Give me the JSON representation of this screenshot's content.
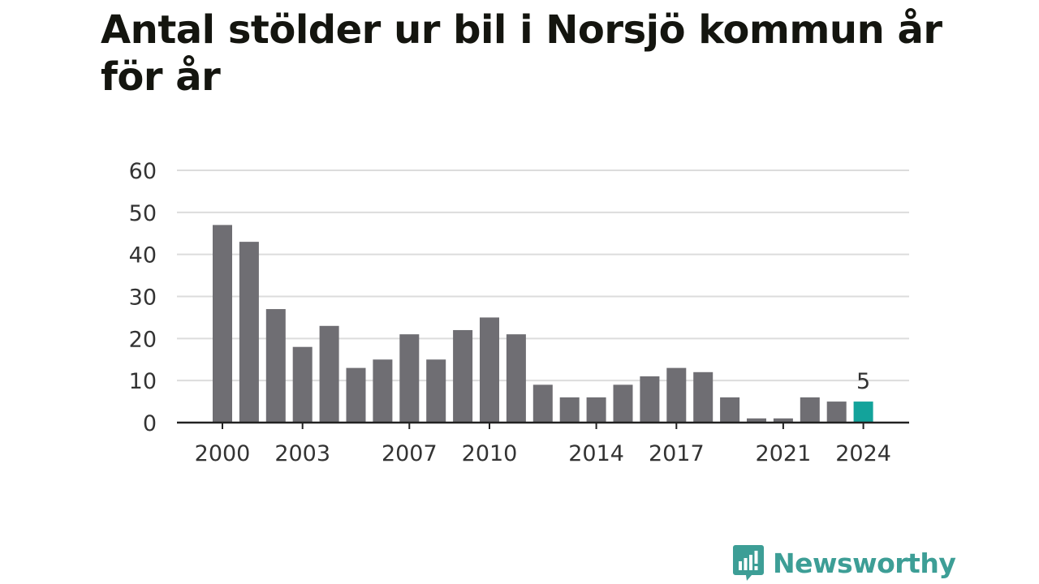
{
  "title": "Antal stölder ur bil i Norsjö kommun år för år",
  "brand": {
    "name": "Newsworthy",
    "icon": "newsworthy-logo-icon",
    "color": "#3d9e96"
  },
  "colors": {
    "bar": "#6f6e73",
    "highlight": "#13a39b",
    "grid": "#dcdcdc",
    "axis": "#222222",
    "text": "#333333"
  },
  "chart_data": {
    "type": "bar",
    "categories": [
      "2000",
      "2001",
      "2002",
      "2003",
      "2004",
      "2005",
      "2006",
      "2007",
      "2008",
      "2009",
      "2010",
      "2011",
      "2012",
      "2013",
      "2014",
      "2015",
      "2016",
      "2017",
      "2018",
      "2019",
      "2020",
      "2021",
      "2022",
      "2023",
      "2024"
    ],
    "values": [
      47,
      43,
      27,
      18,
      23,
      13,
      15,
      21,
      15,
      22,
      25,
      21,
      9,
      6,
      6,
      9,
      11,
      13,
      12,
      6,
      1,
      1,
      6,
      5,
      5
    ],
    "x_tick_labels": [
      "2000",
      "2003",
      "2007",
      "2010",
      "2014",
      "2017",
      "2021",
      "2024"
    ],
    "y_ticks": [
      0,
      10,
      20,
      30,
      40,
      50,
      60
    ],
    "ylim": [
      0,
      60
    ],
    "grid": true,
    "highlight": {
      "category": "2024",
      "label": "5"
    }
  }
}
